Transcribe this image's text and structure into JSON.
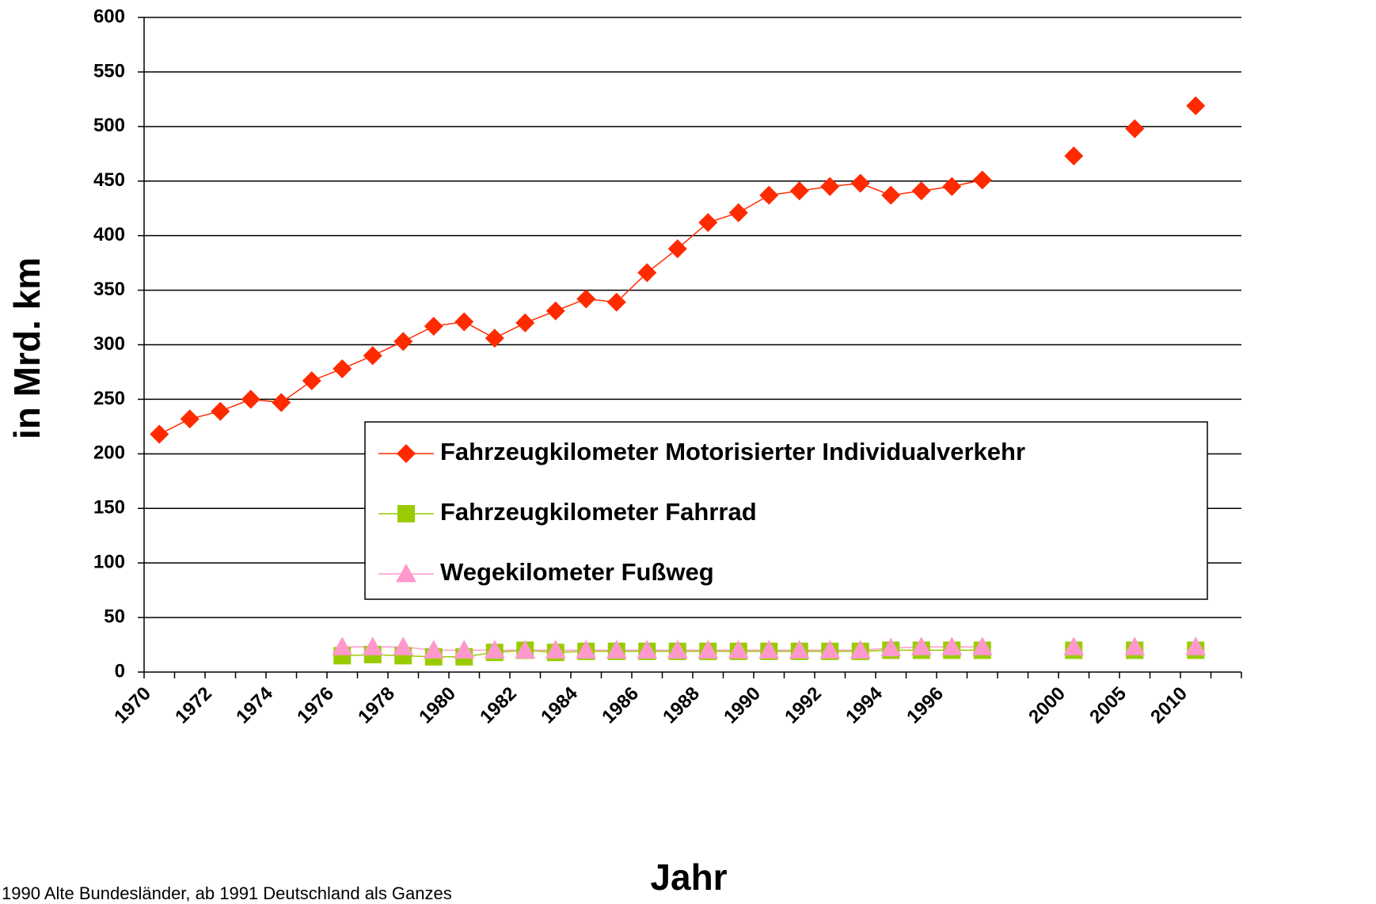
{
  "chart_data": {
    "type": "line",
    "y_label": "in Mrd. km",
    "x_label": "Jahr",
    "footnote": "1990 Alte Bundesländer, ab 1991 Deutschland als Ganzes",
    "categories": [
      "1970",
      null,
      "1972",
      null,
      "1974",
      null,
      "1976",
      null,
      "1978",
      null,
      "1980",
      null,
      "1982",
      null,
      "1984",
      null,
      "1986",
      null,
      "1988",
      null,
      "1990",
      null,
      "1992",
      null,
      "1994",
      null,
      "1996",
      null,
      null,
      null,
      "2000",
      null,
      "2005",
      null,
      "2010",
      null
    ],
    "series": [
      {
        "name": "Fahrzeugkilometer Motorisierter Individualverkehr",
        "color": "#ff2a00",
        "marker": "diamond",
        "values": [
          218,
          232,
          239,
          250,
          247,
          267,
          278,
          290,
          303,
          317,
          321,
          306,
          320,
          331,
          342,
          339,
          366,
          388,
          412,
          421,
          437,
          441,
          445,
          448,
          437,
          441,
          445,
          451,
          null,
          null,
          473,
          null,
          498,
          null,
          519,
          null
        ]
      },
      {
        "name": "Fahrzeugkilometer Fahrrad",
        "color": "#99cc00",
        "marker": "square",
        "values": [
          null,
          null,
          null,
          null,
          null,
          null,
          15,
          16,
          15,
          14,
          14,
          18,
          20,
          18,
          19,
          19,
          19,
          19,
          19,
          19,
          19,
          19,
          19,
          19,
          20,
          20,
          20,
          20,
          null,
          null,
          20,
          null,
          20,
          null,
          20,
          null
        ]
      },
      {
        "name": "Wegekilometer Fußweg",
        "color": "#ff99cc",
        "marker": "triangle",
        "values": [
          null,
          null,
          null,
          null,
          null,
          null,
          23,
          23,
          23,
          20,
          20,
          20,
          20,
          20,
          20,
          20,
          20,
          20,
          20,
          20,
          20,
          20,
          20,
          20,
          22,
          23,
          23,
          23,
          null,
          null,
          23,
          null,
          23,
          null,
          23,
          null
        ]
      }
    ],
    "ylim": [
      0,
      600
    ],
    "yticks": [
      0,
      50,
      100,
      150,
      200,
      250,
      300,
      350,
      400,
      450,
      500,
      550,
      600
    ],
    "grid": true
  }
}
